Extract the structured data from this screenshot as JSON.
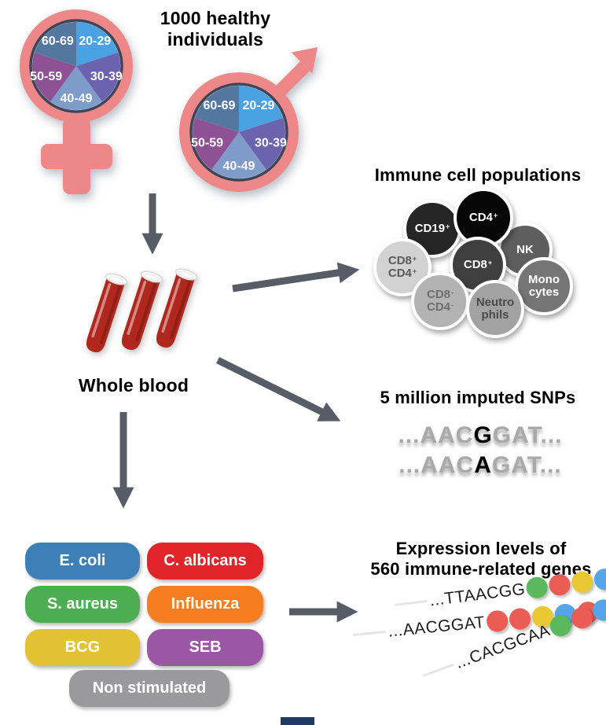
{
  "header": {
    "title": "1000 healthy\nindividuals"
  },
  "demographics": {
    "age_groups": [
      "20-29",
      "30-39",
      "40-49",
      "50-59",
      "60-69"
    ],
    "slice_colors": [
      "#4aa2e2",
      "#6c63ae",
      "#7f9bca",
      "#8e5194",
      "#53779e"
    ],
    "symbol_color": "#ee8888",
    "ring_color": "#3c4657"
  },
  "whole_blood": {
    "label": "Whole blood"
  },
  "immune": {
    "title": "Immune cell populations",
    "cells": [
      {
        "id": "nk",
        "lines": [
          "NK"
        ],
        "bg": "#5e5e5e",
        "fg": "#ffffff"
      },
      {
        "id": "cd19",
        "lines": [
          "CD19^+"
        ],
        "bg": "#262626",
        "fg": "#ffffff"
      },
      {
        "id": "cd4",
        "lines": [
          "CD4^+"
        ],
        "bg": "#070707",
        "fg": "#ffffff"
      },
      {
        "id": "cd8-cd4-pos",
        "lines": [
          "CD8^+",
          "CD4^+"
        ],
        "bg": "#d2d2d2",
        "fg": "#5a5a5a"
      },
      {
        "id": "cd8",
        "lines": [
          "CD8^+"
        ],
        "bg": "#3f3f3f",
        "fg": "#ffffff"
      },
      {
        "id": "cd8-cd4-neg",
        "lines": [
          "CD8^-",
          "CD4^-"
        ],
        "bg": "#b3b3b3",
        "fg": "#6e6e6e"
      },
      {
        "id": "monocytes",
        "lines": [
          "Mono",
          "cytes"
        ],
        "bg": "#757575",
        "fg": "#ffffff"
      },
      {
        "id": "neutrophils",
        "lines": [
          "Neutro",
          "phils"
        ],
        "bg": "#a2a2a2",
        "fg": "#4a4a4a"
      }
    ]
  },
  "snps": {
    "title": "5 million imputed SNPs",
    "sequences": [
      {
        "segments": [
          {
            "t": "...AAC"
          },
          {
            "t": "G",
            "snp": true
          },
          {
            "t": "GAT..."
          }
        ]
      },
      {
        "segments": [
          {
            "t": "...AAC"
          },
          {
            "t": "A",
            "snp": true
          },
          {
            "t": "GAT..."
          }
        ]
      }
    ]
  },
  "stimulations": {
    "items": [
      {
        "label": "E. coli",
        "color": "#3d80b8"
      },
      {
        "label": "C. albicans",
        "color": "#e02428"
      },
      {
        "label": "S. aureus",
        "color": "#4cae50"
      },
      {
        "label": "Influenza",
        "color": "#f67e20"
      },
      {
        "label": "BCG",
        "color": "#e2c232"
      },
      {
        "label": "SEB",
        "color": "#9b57a5"
      },
      {
        "label": "Non stimulated",
        "color": "#9a999b"
      }
    ]
  },
  "expression": {
    "title": "Expression levels of\n560 immune-related genes",
    "dot_colors": {
      "green": "#5cb85c",
      "red": "#ea5d54",
      "yellow": "#eac833",
      "blue": "#56a4ea"
    },
    "rows": [
      {
        "sequence": "...TTAACGG",
        "dots": [
          "green",
          "red",
          "yellow",
          "blue",
          "blue"
        ]
      },
      {
        "sequence": "...AACGGAT",
        "dots": [
          "red",
          "red",
          "yellow",
          "blue",
          "red"
        ]
      },
      {
        "sequence": "...CACGCAA",
        "dots": [
          "green",
          "red",
          "blue",
          "red",
          "red"
        ]
      }
    ]
  },
  "colors": {
    "arrow": "#575d66",
    "blood": "#b0271e",
    "bottom_fragment": "#1f3864"
  }
}
